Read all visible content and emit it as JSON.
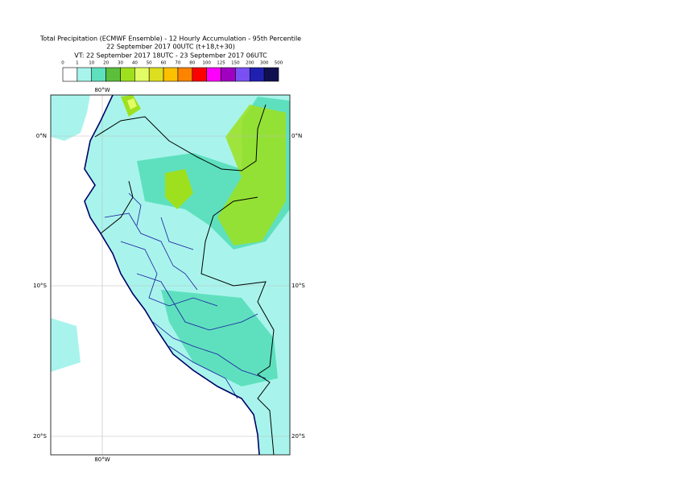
{
  "header": {
    "title": "Total Precipitation (ECMWF Ensemble) - 12 Hourly Accumulation - 95th Percentile",
    "run": "22 September 2017 00UTC (t+18,t+30)",
    "valid": "VT: 22 September 2017 18UTC - 23 September 2017 06UTC"
  },
  "legend": {
    "levels": [
      0,
      1,
      10,
      20,
      30,
      40,
      50,
      60,
      70,
      80,
      100,
      125,
      150,
      200,
      300,
      500
    ],
    "colors": [
      "#ffffff",
      "#a8f4ec",
      "#5ee0be",
      "#5cbf3c",
      "#9ee01e",
      "#e2fc66",
      "#dede20",
      "#fcc000",
      "#fc8400",
      "#fc0000",
      "#fc00fc",
      "#a000c0",
      "#7a50f4",
      "#2020b0",
      "#101050"
    ]
  },
  "map": {
    "lon_top": "80°W",
    "lon_bottom": "80°W",
    "lat_left": [
      "0°N",
      "10°S",
      "20°S"
    ],
    "lat_right": [
      "0°N",
      "10°S",
      "20°S"
    ]
  }
}
